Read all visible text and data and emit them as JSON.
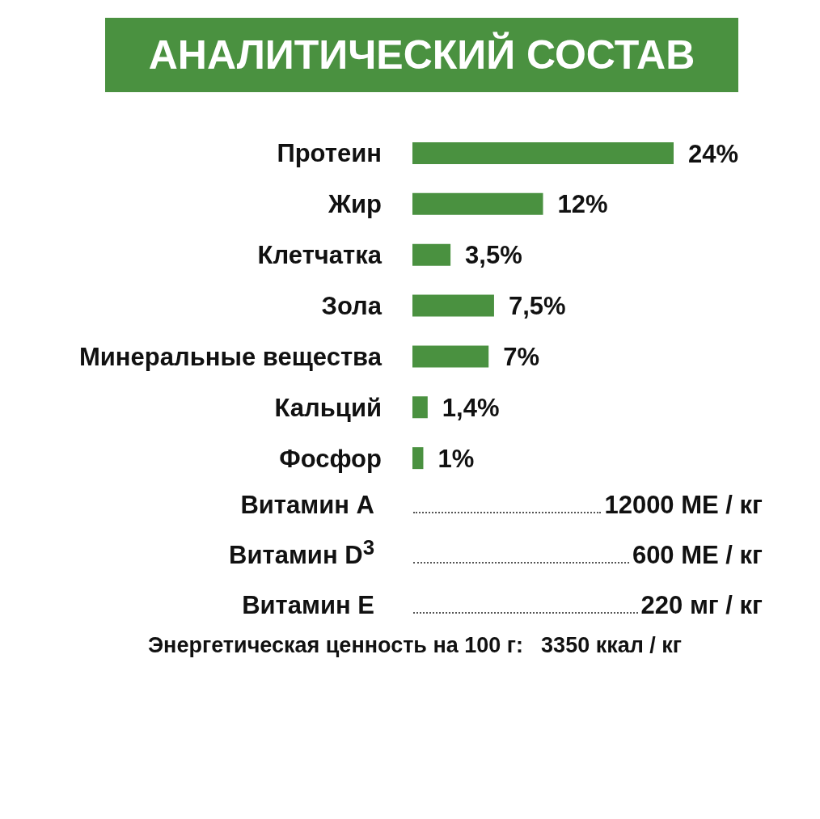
{
  "chart_data": {
    "type": "bar",
    "orientation": "horizontal",
    "title": "АНАЛИТИЧЕСКИЙ СОСТАВ",
    "categories": [
      "Протеин",
      "Жир",
      "Клетчатка",
      "Зола",
      "Минеральные вещества",
      "Кальций",
      "Фосфор"
    ],
    "values": [
      24,
      12,
      3.5,
      7.5,
      7,
      1.4,
      1
    ],
    "value_labels": [
      "24%",
      "12%",
      "3,5%",
      "7,5%",
      "7%",
      "1,4%",
      "1%"
    ],
    "color": "#4a9140",
    "annotations": [
      "Витамин A",
      "12000 МЕ / кг",
      "Витамин D$^{3}$",
      "600 МЕ / кг",
      "Витамин E",
      "220 мг / кг",
      "Энергетическая ценность на 100 г:",
      "3350 ккал / кг"
    ]
  }
}
